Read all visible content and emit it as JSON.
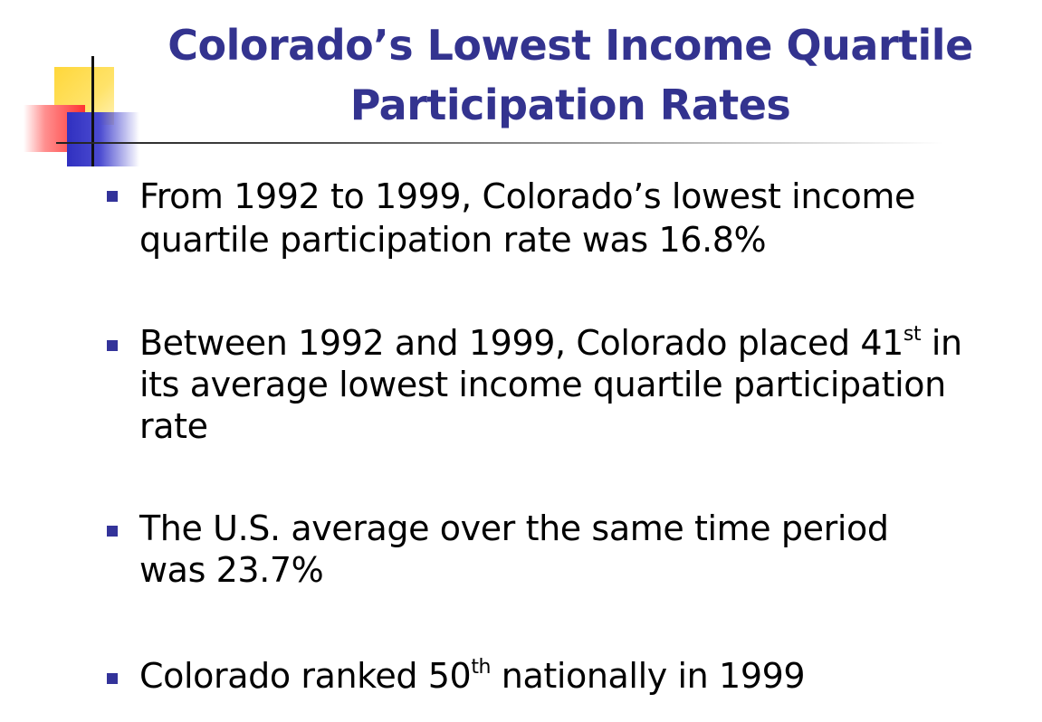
{
  "slide": {
    "title_line1": "Colorado’s Lowest Income Quartile",
    "title_line2": "Participation Rates",
    "bullets": [
      {
        "lines": [
          "From 1992 to 1999, Colorado’s lowest income",
          "quartile participation rate was 16.8%"
        ]
      },
      {
        "line1_pre": "Between 1992 and 1999, Colorado placed 41",
        "line1_sup": "st",
        "line1_post": " in",
        "lines": [
          "its average lowest income quartile participation",
          "rate"
        ]
      },
      {
        "lines": [
          "The U.S. average over the same time period",
          "was 23.7%"
        ]
      },
      {
        "line1_pre": "Colorado ranked 50",
        "line1_sup": "th",
        "line1_post": " nationally in 1999"
      }
    ]
  },
  "colors": {
    "title": "#33338f",
    "bullet": "#33339a",
    "logo_yellow": "#ffd73a",
    "logo_red": "#ff3333",
    "logo_blue": "#3030c0"
  }
}
